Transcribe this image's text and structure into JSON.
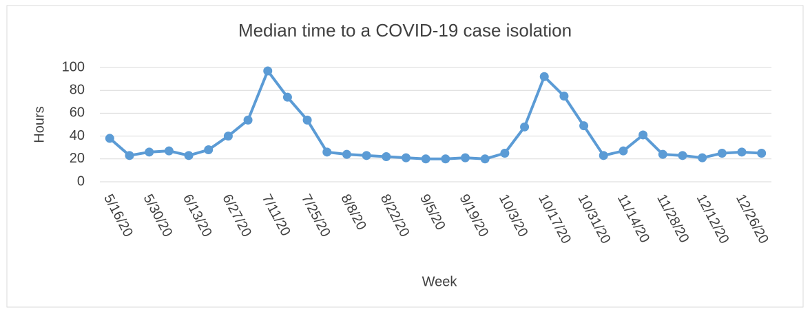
{
  "chart_data": {
    "type": "line",
    "title": "Median time to a COVID-19 case isolation",
    "xlabel": "Week",
    "ylabel": "Hours",
    "categories": [
      "5/16/20",
      null,
      "5/30/20",
      null,
      "6/13/20",
      null,
      "6/27/20",
      null,
      "7/11/20",
      null,
      "7/25/20",
      null,
      "8/8/20",
      null,
      "8/22/20",
      null,
      "9/5/20",
      null,
      "9/19/20",
      null,
      "10/3/20",
      null,
      "10/17/20",
      null,
      "10/31/20",
      null,
      "11/14/20",
      null,
      "11/28/20",
      null,
      "12/12/20",
      null,
      "12/26/20",
      null
    ],
    "values": [
      38,
      23,
      26,
      27,
      23,
      28,
      40,
      54,
      97,
      74,
      54,
      26,
      24,
      23,
      22,
      21,
      20,
      20,
      21,
      20,
      25,
      48,
      92,
      75,
      49,
      23,
      27,
      41,
      24,
      23,
      21,
      25,
      26,
      25
    ],
    "color": "#5b9bd5",
    "ylim": [
      0,
      100
    ],
    "yticks": [
      0,
      20,
      40,
      60,
      80,
      100
    ],
    "grid": true
  }
}
